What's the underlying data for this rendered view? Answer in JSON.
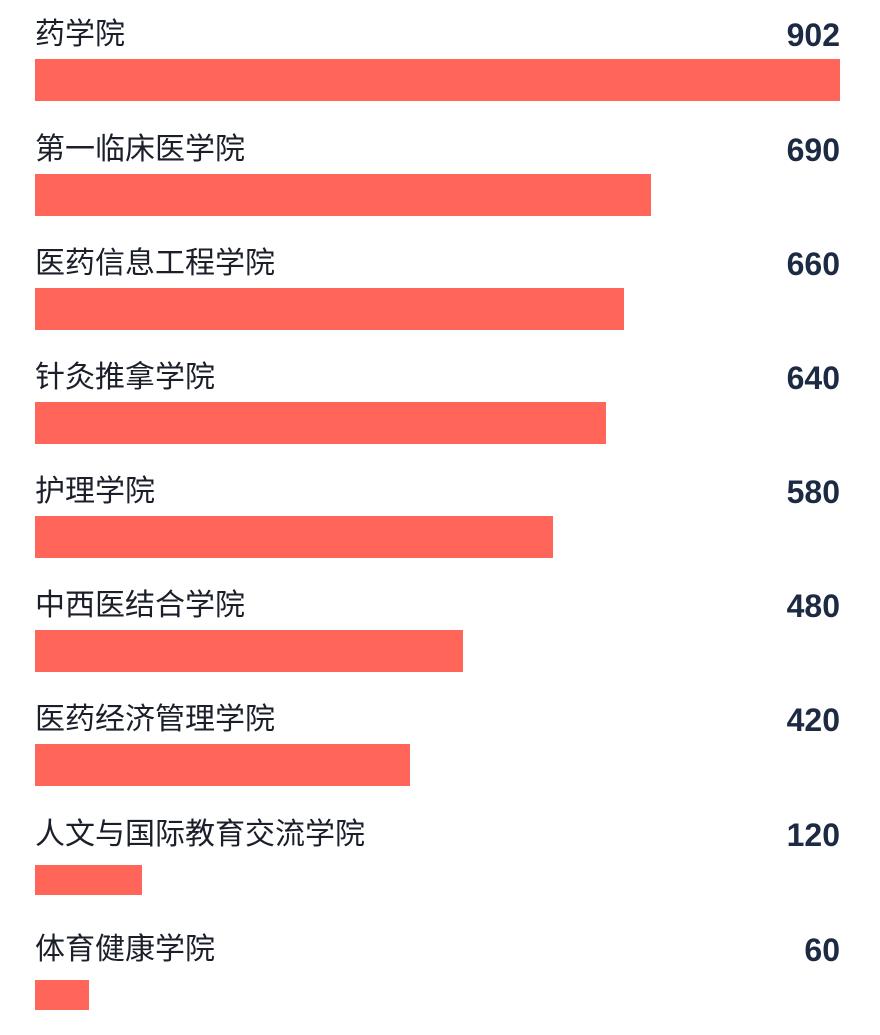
{
  "chart_data": {
    "type": "bar",
    "orientation": "horizontal",
    "categories": [
      "药学院",
      "第一临床医学院",
      "医药信息工程学院",
      "针灸推拿学院",
      "护理学院",
      "中西医结合学院",
      "医药经济管理学院",
      "人文与国际教育交流学院",
      "体育健康学院"
    ],
    "values": [
      902,
      690,
      660,
      640,
      580,
      480,
      420,
      120,
      60
    ],
    "xlim": [
      0,
      902
    ],
    "grid": false,
    "legend": "none",
    "bar_color": "#ff6558",
    "label_color": "#1b1f2a",
    "value_color": "#1d2a44"
  }
}
